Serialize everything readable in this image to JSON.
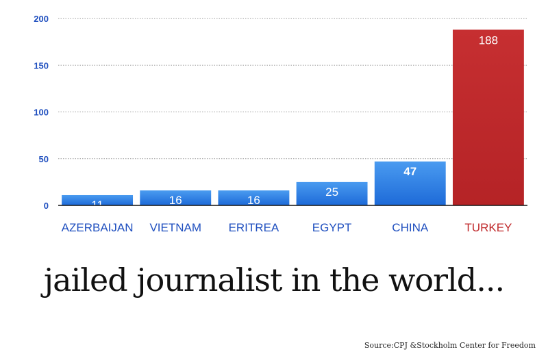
{
  "chart_data": {
    "type": "bar",
    "categories": [
      "AZERBAIJAN",
      "VIETNAM",
      "ERITREA",
      "EGYPT",
      "CHINA",
      "TURKEY"
    ],
    "values": [
      11,
      16,
      16,
      25,
      47,
      188
    ],
    "data_labels": [
      "11",
      "16",
      "16",
      "25",
      "47",
      "188"
    ],
    "ylim": [
      0,
      200
    ],
    "yticks": [
      0,
      50,
      100,
      150,
      200
    ],
    "grid": true,
    "legend": "none",
    "colors": {
      "default_bar": "#2f7fe0",
      "highlight_bar": "#c0292b",
      "tick_label": "#1f4fbf",
      "category_label": "#1f4fbf",
      "highlight_label": "#c0292b"
    },
    "highlight_category": "TURKEY",
    "bold_labels": [
      "47"
    ]
  },
  "caption": "jailed journalist in the world...",
  "source": "Source:CPJ &Stockholm Center for Freedom"
}
